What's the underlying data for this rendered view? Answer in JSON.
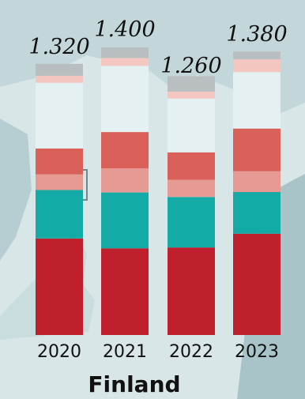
{
  "chart_data": {
    "type": "bar",
    "stacked": true,
    "categories": [
      "2020",
      "2021",
      "2022",
      "2023"
    ],
    "totals": [
      "1.320",
      "1.400",
      "1.260",
      "1.380"
    ],
    "title": "Finland",
    "series": [
      {
        "color": "#c0202e",
        "values": [
          0.47,
          0.422,
          0.426,
          0.493
        ]
      },
      {
        "color": "#14aaa6",
        "values": [
          0.236,
          0.272,
          0.246,
          0.203
        ]
      },
      {
        "color": "#e79a93",
        "values": [
          0.076,
          0.117,
          0.084,
          0.101
        ]
      },
      {
        "color": "#d9615a",
        "values": [
          0.126,
          0.177,
          0.133,
          0.208
        ]
      },
      {
        "color": "#e4f0f2",
        "values": [
          0.32,
          0.322,
          0.262,
          0.275
        ]
      },
      {
        "color": "#f3c7c0",
        "values": [
          0.034,
          0.039,
          0.034,
          0.062
        ]
      },
      {
        "color": "#b9bec0",
        "values": [
          0.058,
          0.051,
          0.075,
          0.038
        ]
      }
    ]
  }
}
